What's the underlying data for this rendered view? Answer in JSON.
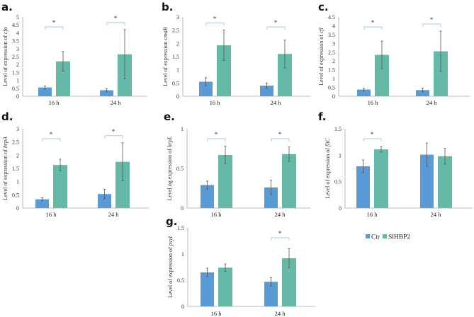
{
  "chart_data": [
    {
      "type": "bar",
      "panel": "a.",
      "ylabel_prefix": "Level of expression of ",
      "gene": "cfa",
      "ylim": [
        0,
        5
      ],
      "ystep": 0.5,
      "categories": [
        "16 h",
        "24 h"
      ],
      "series": [
        {
          "name": "Ctr",
          "values": [
            0.55,
            0.38
          ],
          "errors": [
            0.1,
            0.08
          ]
        },
        {
          "name": "SlHBP2",
          "values": [
            2.2,
            2.65
          ],
          "errors": [
            0.62,
            1.55
          ]
        }
      ],
      "significance": [
        "*",
        "*"
      ]
    },
    {
      "type": "bar",
      "panel": "b.",
      "ylabel_prefix": "Level of expression ",
      "gene": "cmaB",
      "ylim": [
        0,
        3
      ],
      "ystep": 0.5,
      "categories": [
        "16 h",
        "24 h"
      ],
      "series": [
        {
          "name": "Ctr",
          "values": [
            0.55,
            0.4
          ],
          "errors": [
            0.15,
            0.1
          ]
        },
        {
          "name": "SlHBP2",
          "values": [
            1.93,
            1.6
          ],
          "errors": [
            0.58,
            0.53
          ]
        }
      ],
      "significance": [
        "*",
        "*"
      ]
    },
    {
      "type": "bar",
      "panel": "c.",
      "ylabel_prefix": "Level of expression of ",
      "gene": "cfl",
      "ylim": [
        0,
        4.5
      ],
      "ystep": 0.5,
      "categories": [
        "16 h",
        "24 h"
      ],
      "series": [
        {
          "name": "Ctr",
          "values": [
            0.38,
            0.35
          ],
          "errors": [
            0.08,
            0.1
          ]
        },
        {
          "name": "SlHBP2",
          "values": [
            2.35,
            2.55
          ],
          "errors": [
            0.78,
            1.15
          ]
        }
      ],
      "significance": [
        "*",
        "*"
      ]
    },
    {
      "type": "bar",
      "panel": "d.",
      "ylabel_prefix": "Level of expression of ",
      "gene": "hrpA",
      "ylim": [
        0,
        3
      ],
      "ystep": 0.5,
      "categories": [
        "16 h",
        "24 h"
      ],
      "series": [
        {
          "name": "Ctr",
          "values": [
            0.33,
            0.53
          ],
          "errors": [
            0.06,
            0.18
          ]
        },
        {
          "name": "SlHBP2",
          "values": [
            1.63,
            1.75
          ],
          "errors": [
            0.22,
            0.72
          ]
        }
      ],
      "significance": [
        "*",
        "*"
      ]
    },
    {
      "type": "bar",
      "panel": "e.",
      "ylabel_prefix": "Level og expression of ",
      "gene": "hrpL",
      "ylim": [
        0,
        1
      ],
      "ystep": 0.5,
      "categories": [
        "16 h",
        "24 h"
      ],
      "series": [
        {
          "name": "Ctr",
          "values": [
            0.29,
            0.26
          ],
          "errors": [
            0.05,
            0.09
          ]
        },
        {
          "name": "SlHBP2",
          "values": [
            0.67,
            0.68
          ],
          "errors": [
            0.11,
            0.09
          ]
        }
      ],
      "significance": [
        "*",
        "*"
      ]
    },
    {
      "type": "bar",
      "panel": "f.",
      "ylabel_prefix": "Level of expression of ",
      "gene": "fliC",
      "ylim": [
        0,
        1.5
      ],
      "ystep": 0.5,
      "categories": [
        "16 h",
        "24 h"
      ],
      "series": [
        {
          "name": "Ctr",
          "values": [
            0.79,
            1.01
          ],
          "errors": [
            0.12,
            0.22
          ]
        },
        {
          "name": "SlHBP2",
          "values": [
            1.11,
            0.98
          ],
          "errors": [
            0.05,
            0.15
          ]
        }
      ],
      "significance": [
        "*",
        ""
      ]
    },
    {
      "type": "bar",
      "panel": "g.",
      "ylabel_prefix": "Level of expression of ",
      "gene": "psyI",
      "ylim": [
        0,
        1.5
      ],
      "ystep": 0.5,
      "categories": [
        "16 h",
        "24 h"
      ],
      "series": [
        {
          "name": "Ctr",
          "values": [
            0.65,
            0.47
          ],
          "errors": [
            0.08,
            0.08
          ]
        },
        {
          "name": "SlHBP2",
          "values": [
            0.74,
            0.92
          ],
          "errors": [
            0.07,
            0.18
          ]
        }
      ],
      "significance": [
        "",
        "*"
      ]
    }
  ],
  "legend": {
    "placement": "right of panel g",
    "items": [
      {
        "name": "Ctr",
        "color": "#5b9bd5"
      },
      {
        "name": "SlHBP2",
        "color": "#66b9a6"
      }
    ]
  },
  "colors": {
    "ctr": "#5b9bd5",
    "slhbp2": "#66b9a6",
    "bracket": "#a8cbe6",
    "error": "#555555"
  }
}
